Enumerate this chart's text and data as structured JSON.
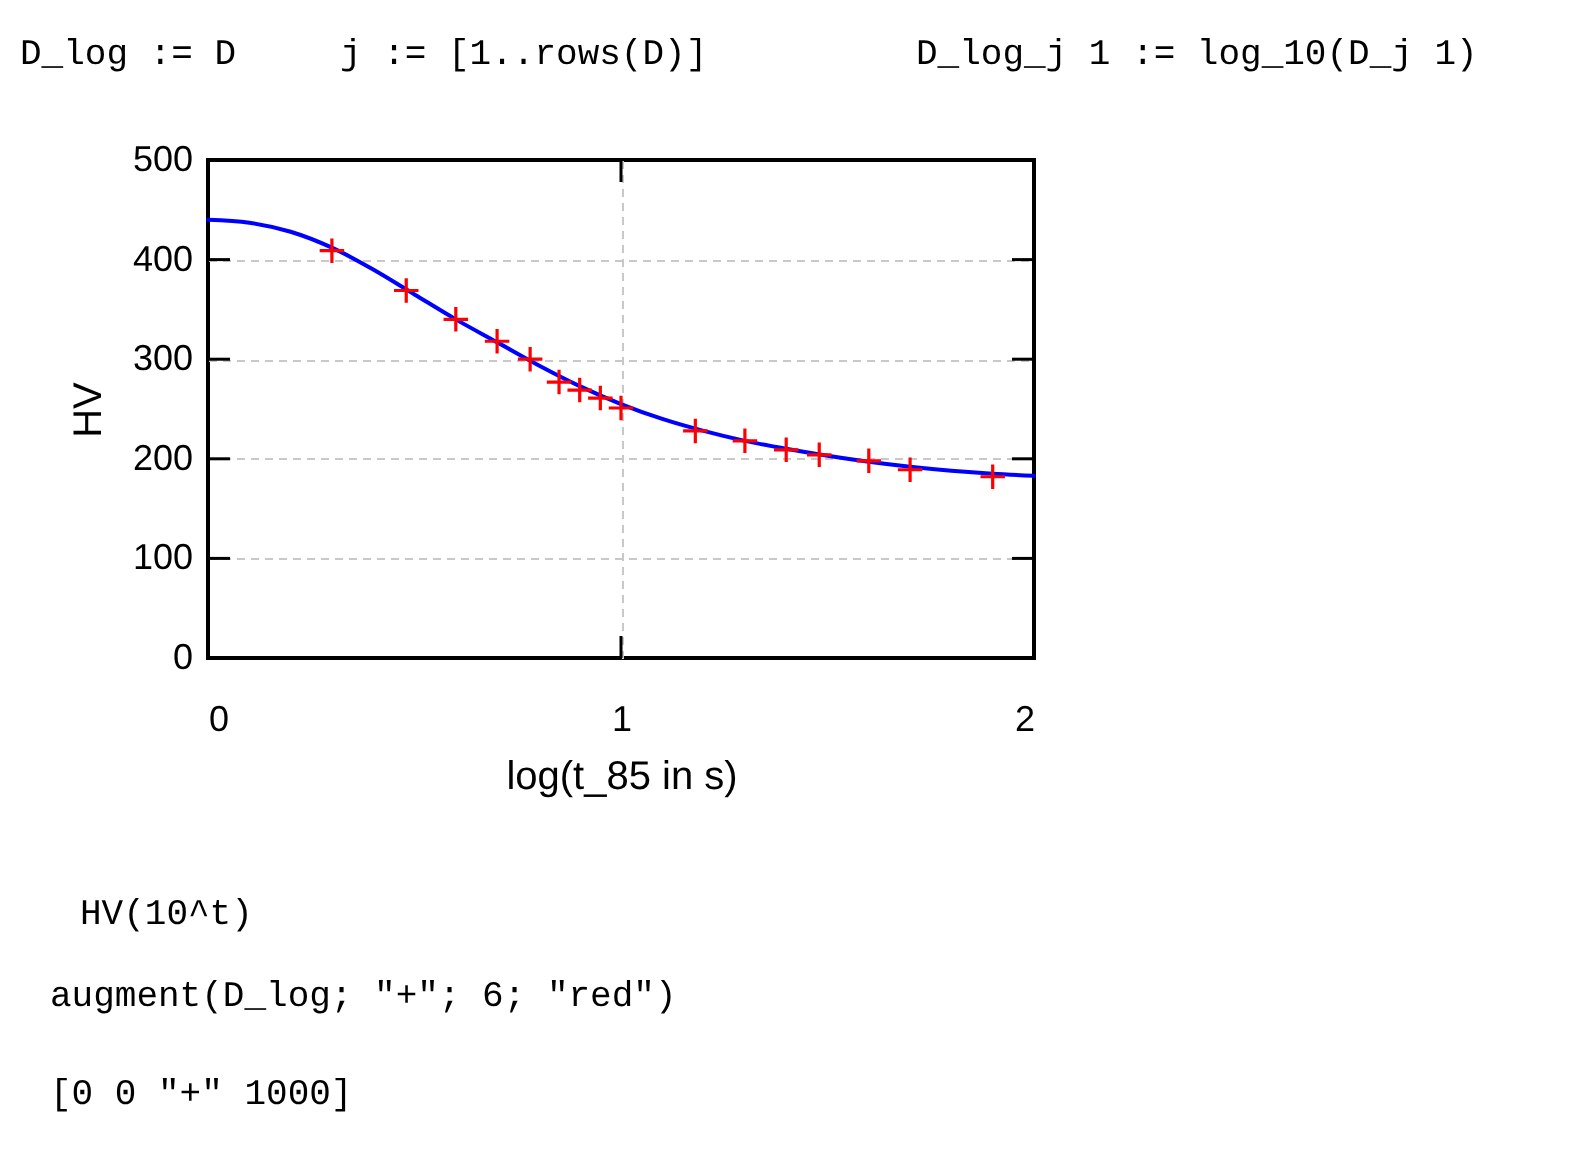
{
  "chart_data": {
    "type": "scatter",
    "xlabel": "log(t_85 in s)",
    "ylabel": "HV",
    "annotations": [
      "D_log := D",
      "j := [1..rows(D)]",
      "D_log_j 1 := log_10(D_j 1)",
      "HV(10^t)",
      "augment(D_log; \"+\"; 6; \"red\")",
      "[0 0 \"+\" 1000]"
    ],
    "xlim": [
      0,
      2
    ],
    "ylim": [
      0,
      500
    ],
    "xticks": [
      0,
      1,
      2
    ],
    "yticks": [
      0,
      100,
      200,
      300,
      400,
      500
    ],
    "grid": true,
    "series": [
      {
        "type": "line",
        "color": "#0000ff",
        "x": [
          0,
          0.1,
          0.2,
          0.3,
          0.4,
          0.5,
          0.6,
          0.7,
          0.8,
          0.9,
          1.0,
          1.1,
          1.2,
          1.3,
          1.4,
          1.5,
          1.6,
          1.7,
          1.8,
          1.9,
          2.0
        ],
        "values": [
          440,
          437,
          428,
          412,
          390,
          365,
          340,
          317,
          294,
          273,
          255,
          240,
          228,
          218,
          210,
          203,
          197,
          192,
          188,
          185,
          183
        ]
      },
      {
        "type": "scatter",
        "color": "#ff0000",
        "marker": "cross",
        "x": [
          0.3,
          0.48,
          0.6,
          0.7,
          0.78,
          0.85,
          0.9,
          0.95,
          1.0,
          1.18,
          1.3,
          1.4,
          1.48,
          1.6,
          1.7,
          1.9
        ],
        "values": [
          409,
          369,
          340,
          318,
          300,
          277,
          269,
          261,
          251,
          228,
          218,
          209,
          204,
          198,
          189,
          182
        ]
      }
    ]
  }
}
